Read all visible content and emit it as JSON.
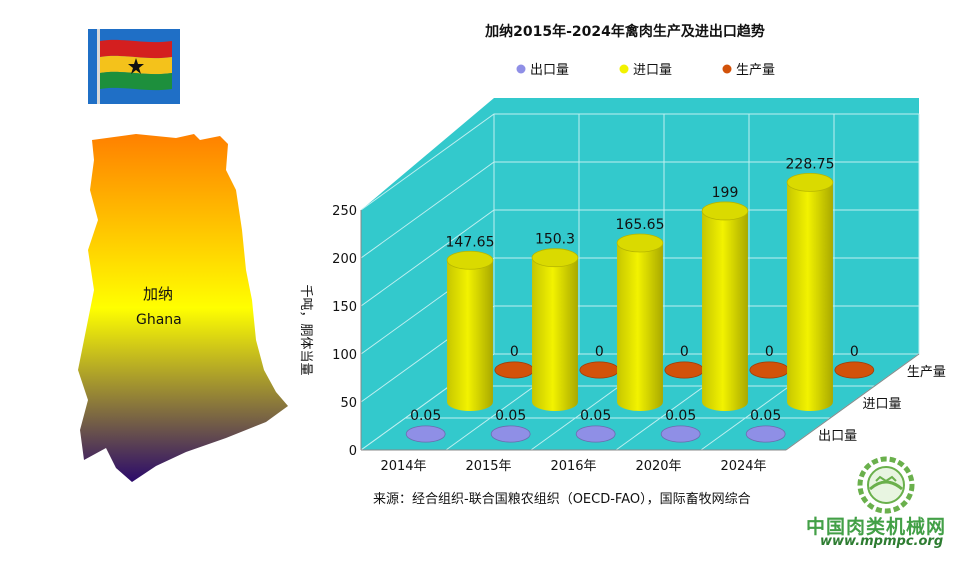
{
  "chart_data": {
    "type": "bar",
    "title": "加纳2015年-2024年禽肉生产及进出口趋势",
    "ylabel": "千吨，胴体当量",
    "ylim": [
      0,
      250
    ],
    "yticks": [
      0,
      50,
      100,
      150,
      200,
      250
    ],
    "categories": [
      "2014年",
      "2015年",
      "2016年",
      "2020年",
      "2024年"
    ],
    "legend_position": "top",
    "series": [
      {
        "name": "出口量",
        "color": "#8f8fe6",
        "values": [
          0.05,
          0.05,
          0.05,
          0.05,
          0.05
        ],
        "labels": [
          "0.05",
          "0.05",
          "0.05",
          "0.05",
          "0.05"
        ]
      },
      {
        "name": "进口量",
        "color": "#f2f200",
        "values": [
          147.65,
          150.3,
          165.65,
          199,
          228.75
        ],
        "labels": [
          "147.65",
          "150.3",
          "165.65",
          "199",
          "228.75"
        ]
      },
      {
        "name": "生产量",
        "color": "#d2520a",
        "values": [
          0,
          0,
          0,
          0,
          0
        ],
        "labels": [
          "0",
          "0",
          "0",
          "0",
          "0"
        ]
      }
    ],
    "depth_labels": [
      "出口量",
      "进口量",
      "生产量"
    ],
    "wall_color": "#33c9cc",
    "grid": true
  },
  "map": {
    "label_cn": "加纳",
    "label_en": "Ghana"
  },
  "source": "来源：经合组织-联合国粮农组织（OECD-FAO），国际畜牧网综合",
  "watermark": {
    "name": "中国肉类机械网",
    "url": "www.mpmpc.org"
  }
}
